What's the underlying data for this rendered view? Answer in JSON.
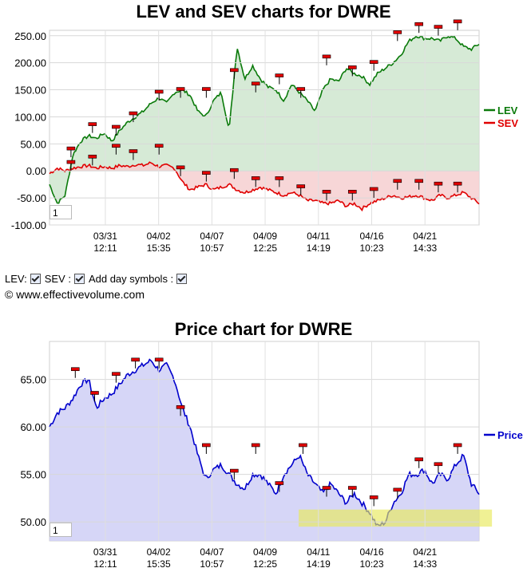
{
  "chart_data": [
    {
      "type": "line",
      "title": "LEV and SEV charts for DWRE",
      "ylim": [
        -100,
        260
      ],
      "yticks": [
        "250.00",
        "200.00",
        "150.00",
        "100.00",
        "50.00",
        "0.00",
        "-50.00",
        "-100.00"
      ],
      "ytick_values": [
        250,
        200,
        150,
        100,
        50,
        0,
        -50,
        -100
      ],
      "xticks": [
        {
          "date": "03/31",
          "time": "12:11"
        },
        {
          "date": "04/02",
          "time": "15:35"
        },
        {
          "date": "04/07",
          "time": "10:57"
        },
        {
          "date": "04/09",
          "time": "12:25"
        },
        {
          "date": "04/11",
          "time": "14:19"
        },
        {
          "date": "04/16",
          "time": "10:23"
        },
        {
          "date": "04/21",
          "time": "14:33"
        }
      ],
      "legend": {
        "position": "right"
      },
      "series": [
        {
          "name": "LEV",
          "color": "#0a7a0a",
          "fill": "#cfe6cf",
          "values": [
            -25,
            -60,
            -45,
            30,
            55,
            65,
            60,
            70,
            55,
            75,
            90,
            100,
            110,
            125,
            135,
            125,
            145,
            150,
            140,
            110,
            100,
            130,
            145,
            75,
            230,
            170,
            195,
            170,
            155,
            150,
            130,
            160,
            145,
            130,
            110,
            150,
            170,
            165,
            190,
            180,
            175,
            160,
            180,
            190,
            200,
            215,
            240,
            250,
            245,
            245,
            240,
            250,
            245,
            230,
            225,
            235
          ]
        },
        {
          "name": "SEV",
          "color": "#e00000",
          "fill": "#f6cfd0",
          "values": [
            -5,
            5,
            0,
            5,
            8,
            10,
            5,
            8,
            5,
            10,
            8,
            12,
            10,
            15,
            8,
            10,
            5,
            -20,
            -35,
            -30,
            -25,
            -35,
            -30,
            -25,
            -35,
            -40,
            -35,
            -30,
            -35,
            -40,
            -45,
            -40,
            -45,
            -55,
            -55,
            -60,
            -60,
            -55,
            -65,
            -60,
            -70,
            -60,
            -55,
            -50,
            -45,
            -50,
            -48,
            -45,
            -50,
            -55,
            -45,
            -50,
            -45,
            -40,
            -50,
            -60
          ]
        }
      ],
      "markers": {
        "lev": [
          [
            0.05,
            40
          ],
          [
            0.1,
            85
          ],
          [
            0.155,
            80
          ],
          [
            0.195,
            105
          ],
          [
            0.255,
            145
          ],
          [
            0.305,
            150
          ],
          [
            0.365,
            150
          ],
          [
            0.43,
            185
          ],
          [
            0.48,
            160
          ],
          [
            0.535,
            175
          ],
          [
            0.585,
            150
          ],
          [
            0.645,
            210
          ],
          [
            0.705,
            190
          ],
          [
            0.755,
            200
          ],
          [
            0.81,
            255
          ],
          [
            0.86,
            270
          ],
          [
            0.905,
            265
          ],
          [
            0.95,
            275
          ]
        ],
        "sev": [
          [
            0.05,
            15
          ],
          [
            0.1,
            25
          ],
          [
            0.155,
            45
          ],
          [
            0.195,
            35
          ],
          [
            0.255,
            45
          ],
          [
            0.305,
            5
          ],
          [
            0.365,
            -5
          ],
          [
            0.43,
            0
          ],
          [
            0.48,
            -15
          ],
          [
            0.535,
            -15
          ],
          [
            0.585,
            -30
          ],
          [
            0.645,
            -40
          ],
          [
            0.705,
            -40
          ],
          [
            0.755,
            -35
          ],
          [
            0.81,
            -20
          ],
          [
            0.86,
            -20
          ],
          [
            0.905,
            -25
          ],
          [
            0.95,
            -25
          ]
        ]
      },
      "zoom_value": "1"
    },
    {
      "type": "area",
      "title": "Price chart for DWRE",
      "ylim": [
        48,
        69
      ],
      "yticks": [
        "65.00",
        "60.00",
        "55.00",
        "50.00"
      ],
      "ytick_values": [
        65,
        60,
        55,
        50
      ],
      "xticks": [
        {
          "date": "03/31",
          "time": "12:11"
        },
        {
          "date": "04/02",
          "time": "15:35"
        },
        {
          "date": "04/07",
          "time": "10:57"
        },
        {
          "date": "04/09",
          "time": "12:25"
        },
        {
          "date": "04/11",
          "time": "14:19"
        },
        {
          "date": "04/16",
          "time": "10:23"
        },
        {
          "date": "04/21",
          "time": "14:33"
        }
      ],
      "legend": {
        "position": "right"
      },
      "series": [
        {
          "name": "Price",
          "color": "#0000cc",
          "fill": "#cfcff6",
          "values": [
            60,
            61.5,
            62,
            63,
            64.5,
            65,
            62,
            63,
            63.5,
            64.5,
            65.5,
            66,
            66.5,
            67,
            66,
            66.5,
            65,
            62,
            60,
            57,
            54.5,
            55.5,
            56,
            55,
            54,
            53.5,
            55,
            55,
            54,
            53,
            55,
            56,
            57,
            55,
            54,
            53,
            54,
            53,
            52,
            53,
            52,
            51,
            49.5,
            50,
            52,
            53,
            55,
            55,
            55.5,
            54,
            55,
            54.5,
            56,
            57,
            54,
            53
          ]
        }
      ],
      "markers": [
        [
          0.06,
          66
        ],
        [
          0.105,
          63.5
        ],
        [
          0.155,
          65.5
        ],
        [
          0.2,
          67
        ],
        [
          0.255,
          67
        ],
        [
          0.305,
          62
        ],
        [
          0.365,
          58
        ],
        [
          0.43,
          55.3
        ],
        [
          0.48,
          58
        ],
        [
          0.535,
          54
        ],
        [
          0.59,
          58
        ],
        [
          0.645,
          53.5
        ],
        [
          0.705,
          53.5
        ],
        [
          0.755,
          52.5
        ],
        [
          0.81,
          53.3
        ],
        [
          0.86,
          56.5
        ],
        [
          0.905,
          56
        ],
        [
          0.95,
          58
        ]
      ],
      "highlight": {
        "y0": 49.5,
        "y1": 51.3,
        "x0": 0.58,
        "x1": 1.03
      },
      "zoom_value": "1"
    }
  ],
  "controls": {
    "lev_label": "LEV:",
    "sev_label": "SEV :",
    "day_symbols_label": "Add day symbols :",
    "copyright": "© www.effectivevolume.com"
  }
}
